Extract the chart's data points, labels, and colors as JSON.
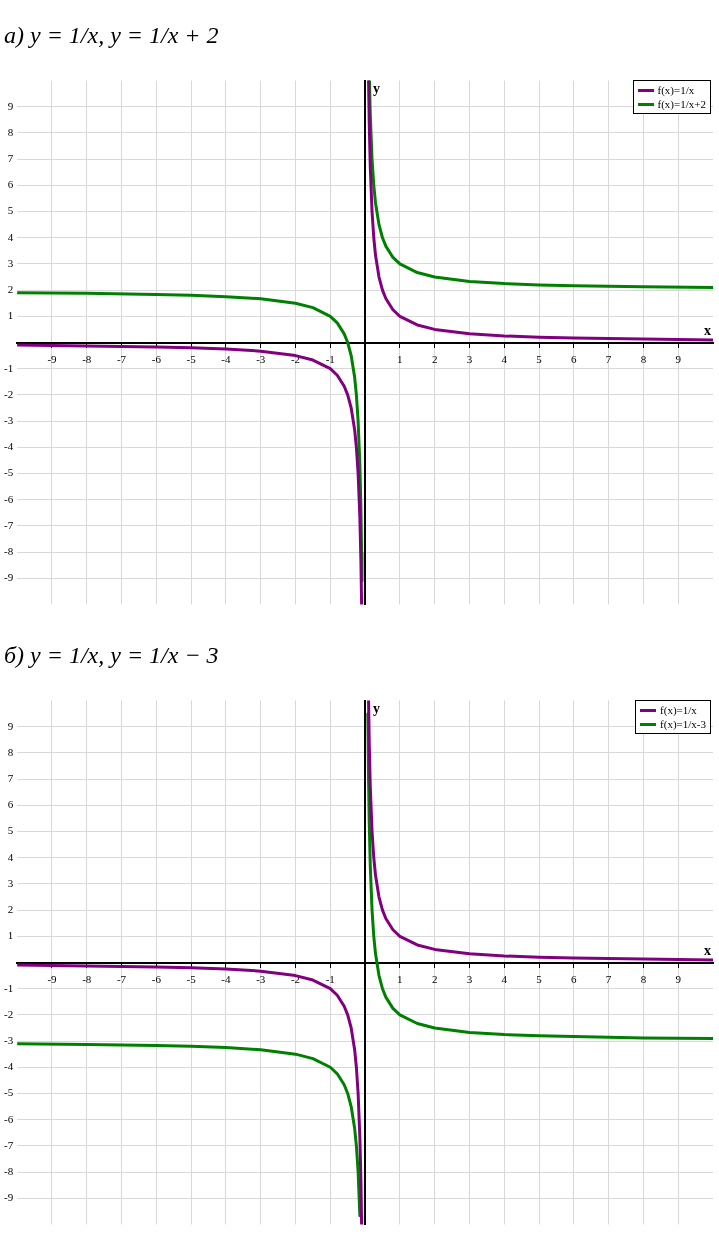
{
  "chart_data": [
    {
      "type": "line",
      "title": "а) y = 1/x,   y = 1/x + 2",
      "xlabel": "x",
      "ylabel": "y",
      "xlim": [
        -10,
        10
      ],
      "ylim": [
        -10,
        10
      ],
      "xticks": [
        -9,
        -8,
        -7,
        -6,
        -5,
        -4,
        -3,
        -2,
        -1,
        1,
        2,
        3,
        4,
        5,
        6,
        7,
        8,
        9
      ],
      "yticks": [
        -9,
        -8,
        -7,
        -6,
        -5,
        -4,
        -3,
        -2,
        -1,
        1,
        2,
        3,
        4,
        5,
        6,
        7,
        8,
        9
      ],
      "grid": true,
      "legend": "top right",
      "marker": "none",
      "line_style": "solid",
      "series": [
        {
          "name": "f(x)=1/x",
          "color": "#800080",
          "x": [
            -10,
            -8,
            -6,
            -5,
            -4,
            -3,
            -2,
            -1.5,
            -1,
            -0.8,
            -0.6,
            -0.5,
            -0.4,
            -0.3,
            -0.25,
            -0.2,
            -0.15,
            -0.12,
            -0.1,
            0,
            0.1,
            0.12,
            0.15,
            0.2,
            0.25,
            0.3,
            0.4,
            0.5,
            0.6,
            0.8,
            1,
            1.5,
            2,
            3,
            4,
            5,
            6,
            8,
            10
          ],
          "values": [
            -0.1,
            -0.13,
            -0.17,
            -0.2,
            -0.25,
            -0.33,
            -0.5,
            -0.67,
            -1,
            -1.25,
            -1.67,
            -2,
            -2.5,
            -3.33,
            -4,
            -5,
            -6.67,
            -8.33,
            -10,
            null,
            10,
            8.33,
            6.67,
            5,
            4,
            3.33,
            2.5,
            2,
            1.67,
            1.25,
            1,
            0.67,
            0.5,
            0.33,
            0.25,
            0.2,
            0.17,
            0.13,
            0.1
          ]
        },
        {
          "name": "f(x)=1/x+2",
          "color": "#008000",
          "x": [
            -10,
            -8,
            -6,
            -5,
            -4,
            -3,
            -2,
            -1.5,
            -1,
            -0.8,
            -0.6,
            -0.5,
            -0.4,
            -0.3,
            -0.25,
            -0.2,
            -0.15,
            -0.12,
            -0.1,
            -0.09,
            0,
            0.125,
            0.15,
            0.2,
            0.25,
            0.3,
            0.4,
            0.5,
            0.6,
            0.8,
            1,
            1.5,
            2,
            3,
            4,
            5,
            6,
            8,
            10
          ],
          "values": [
            1.9,
            1.88,
            1.83,
            1.8,
            1.75,
            1.67,
            1.5,
            1.33,
            1,
            0.75,
            0.33,
            0,
            -0.5,
            -1.33,
            -2,
            -3,
            -4.67,
            -6.33,
            -8,
            -9.11,
            null,
            10,
            8.67,
            7,
            6,
            5.33,
            4.5,
            4,
            3.67,
            3.25,
            3,
            2.67,
            2.5,
            2.33,
            2.25,
            2.2,
            2.17,
            2.13,
            2.1
          ]
        }
      ]
    },
    {
      "type": "line",
      "title": "б) y = 1/x,   y = 1/x − 3",
      "xlabel": "x",
      "ylabel": "y",
      "xlim": [
        -10,
        10
      ],
      "ylim": [
        -10,
        10
      ],
      "xticks": [
        -9,
        -8,
        -7,
        -6,
        -5,
        -4,
        -3,
        -2,
        -1,
        1,
        2,
        3,
        4,
        5,
        6,
        7,
        8,
        9
      ],
      "yticks": [
        -9,
        -8,
        -7,
        -6,
        -5,
        -4,
        -3,
        -2,
        -1,
        1,
        2,
        3,
        4,
        5,
        6,
        7,
        8,
        9
      ],
      "grid": true,
      "legend": "top right",
      "marker": "none",
      "line_style": "solid",
      "series": [
        {
          "name": "f(x)=1/x",
          "color": "#800080",
          "x": [
            -10,
            -8,
            -6,
            -5,
            -4,
            -3,
            -2,
            -1.5,
            -1,
            -0.8,
            -0.6,
            -0.5,
            -0.4,
            -0.3,
            -0.25,
            -0.2,
            -0.15,
            -0.12,
            -0.1,
            0,
            0.1,
            0.12,
            0.15,
            0.2,
            0.25,
            0.3,
            0.4,
            0.5,
            0.6,
            0.8,
            1,
            1.5,
            2,
            3,
            4,
            5,
            6,
            8,
            10
          ],
          "values": [
            -0.1,
            -0.13,
            -0.17,
            -0.2,
            -0.25,
            -0.33,
            -0.5,
            -0.67,
            -1,
            -1.25,
            -1.67,
            -2,
            -2.5,
            -3.33,
            -4,
            -5,
            -6.67,
            -8.33,
            -10,
            null,
            10,
            8.33,
            6.67,
            5,
            4,
            3.33,
            2.5,
            2,
            1.67,
            1.25,
            1,
            0.67,
            0.5,
            0.33,
            0.25,
            0.2,
            0.17,
            0.13,
            0.1
          ]
        },
        {
          "name": "f(x)=1/x-3",
          "color": "#008000",
          "x": [
            -10,
            -8,
            -6,
            -5,
            -4,
            -3,
            -2,
            -1.5,
            -1,
            -0.8,
            -0.6,
            -0.5,
            -0.4,
            -0.3,
            -0.25,
            -0.2,
            -0.15,
            0,
            0.08,
            0.1,
            0.12,
            0.15,
            0.2,
            0.25,
            0.3,
            0.4,
            0.5,
            0.6,
            0.8,
            1,
            1.5,
            2,
            3,
            4,
            5,
            6,
            8,
            10
          ],
          "values": [
            -3.1,
            -3.13,
            -3.17,
            -3.2,
            -3.25,
            -3.33,
            -3.5,
            -3.67,
            -4,
            -4.25,
            -4.67,
            -5,
            -5.5,
            -6.33,
            -7,
            -8,
            -9.67,
            null,
            9.5,
            7,
            5.33,
            3.67,
            2,
            1,
            0.33,
            -0.5,
            -1,
            -1.33,
            -1.75,
            -2,
            -2.33,
            -2.5,
            -2.67,
            -2.75,
            -2.8,
            -2.83,
            -2.88,
            -2.9
          ]
        }
      ]
    }
  ]
}
